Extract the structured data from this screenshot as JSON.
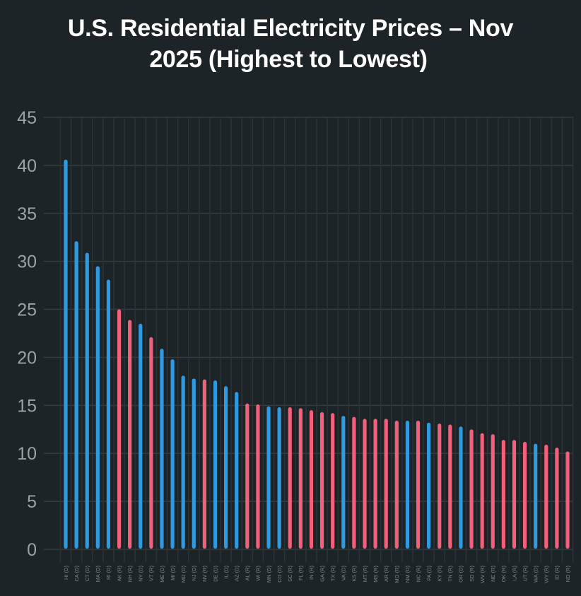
{
  "chart_data": {
    "type": "bar",
    "title": "U.S. Residential Electricity Prices – Nov 2025 (Highest to Lowest)",
    "title_lines": [
      "U.S. Residential Electricity Prices – Nov",
      "2025 (Highest to Lowest)"
    ],
    "xlabel": "",
    "ylabel": "",
    "ylim": [
      0,
      45
    ],
    "yticks": [
      0,
      5,
      10,
      15,
      20,
      25,
      30,
      35,
      40,
      45
    ],
    "grid": true,
    "legend": "none",
    "colors": {
      "D": "#2f9ae0",
      "R": "#f2607c"
    },
    "categories": [
      "HI (D)",
      "CA (D)",
      "CT (D)",
      "MA (D)",
      "RI (D)",
      "AK (R)",
      "NH (R)",
      "NY (D)",
      "VT (R)",
      "ME (D)",
      "MI (D)",
      "MD (D)",
      "NJ (D)",
      "NV (R)",
      "DE (D)",
      "IL (D)",
      "AZ (D)",
      "AL (R)",
      "WI (R)",
      "MN (D)",
      "CO (D)",
      "SC (R)",
      "FL (R)",
      "IN (R)",
      "GA (R)",
      "TX (R)",
      "VA (D)",
      "KS (R)",
      "MT (R)",
      "MS (R)",
      "AR (R)",
      "MO (R)",
      "NM (D)",
      "NC (R)",
      "PA (D)",
      "KY (R)",
      "TN (R)",
      "OR (D)",
      "SD (R)",
      "WV (R)",
      "NE (R)",
      "OK (R)",
      "LA (R)",
      "UT (R)",
      "WA (D)",
      "WY (R)",
      "ID (R)",
      "ND (R)"
    ],
    "party": [
      "D",
      "D",
      "D",
      "D",
      "D",
      "R",
      "R",
      "D",
      "R",
      "D",
      "D",
      "D",
      "D",
      "R",
      "D",
      "D",
      "D",
      "R",
      "R",
      "D",
      "D",
      "R",
      "R",
      "R",
      "R",
      "R",
      "D",
      "R",
      "R",
      "R",
      "R",
      "R",
      "D",
      "R",
      "D",
      "R",
      "R",
      "D",
      "R",
      "R",
      "R",
      "R",
      "R",
      "R",
      "D",
      "R",
      "R",
      "R"
    ],
    "values": [
      40.6,
      32.1,
      30.9,
      29.5,
      28.1,
      25.0,
      23.9,
      23.5,
      22.1,
      20.9,
      19.8,
      18.1,
      17.8,
      17.7,
      17.6,
      17.0,
      16.4,
      15.2,
      15.1,
      14.9,
      14.8,
      14.8,
      14.7,
      14.5,
      14.3,
      14.2,
      13.9,
      13.8,
      13.6,
      13.6,
      13.6,
      13.4,
      13.4,
      13.4,
      13.2,
      13.1,
      13.0,
      12.8,
      12.5,
      12.1,
      12.0,
      11.4,
      11.4,
      11.2,
      11.0,
      10.9,
      10.6,
      10.2
    ]
  }
}
